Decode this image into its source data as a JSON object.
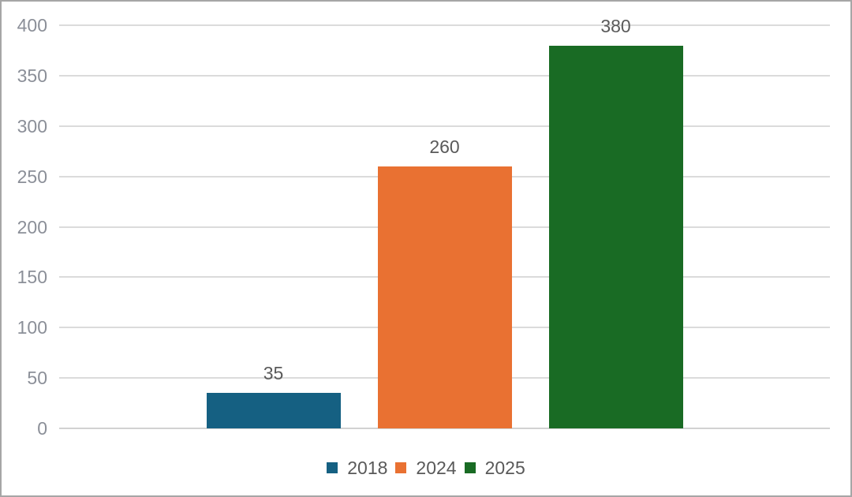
{
  "chart_data": {
    "type": "bar",
    "categories": [
      ""
    ],
    "series": [
      {
        "name": "2018",
        "values": [
          35
        ],
        "color": "#156082"
      },
      {
        "name": "2024",
        "values": [
          260
        ],
        "color": "#E97132"
      },
      {
        "name": "2025",
        "values": [
          380
        ],
        "color": "#196B24"
      }
    ],
    "data_labels": [
      "35",
      "260",
      "380"
    ],
    "title": "",
    "xlabel": "",
    "ylabel": "",
    "ylim": [
      0,
      400
    ],
    "ytick_step": 50,
    "yticks": [
      "0",
      "50",
      "100",
      "150",
      "200",
      "250",
      "300",
      "350",
      "400"
    ],
    "grid": true,
    "legend_position": "bottom",
    "legend_labels": [
      "2018",
      "2024",
      "2025"
    ]
  },
  "styles": {
    "grid_color": "#DBDBDB",
    "baseline_color": "#D2D2D2",
    "tick_label_color": "#8B8F98",
    "data_label_color": "#5A5A5A",
    "legend_text_color": "#595959",
    "border_color": "#A6A6A6",
    "background": "#FFFFFF"
  }
}
